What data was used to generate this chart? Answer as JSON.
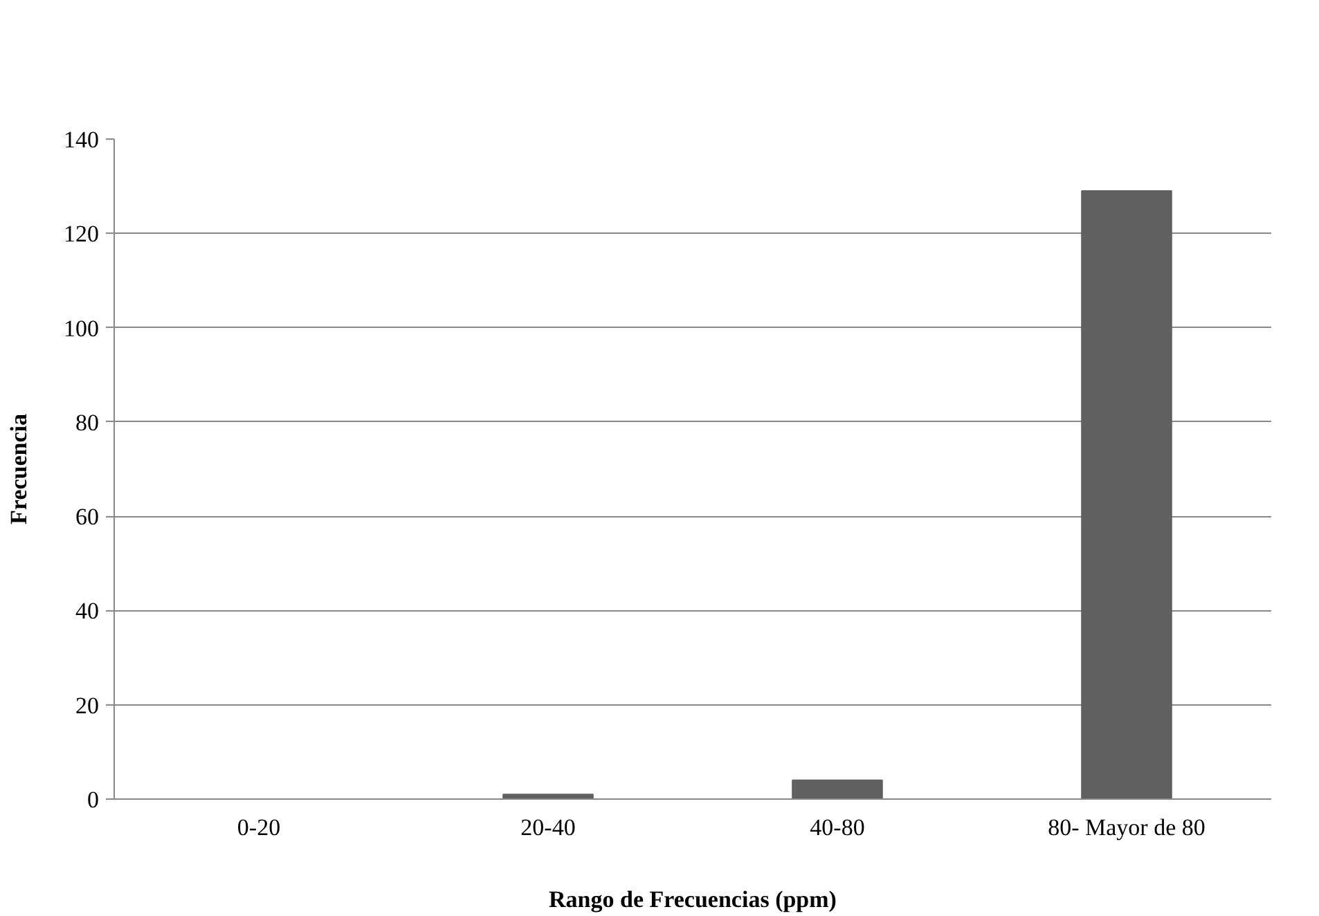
{
  "chart_data": {
    "type": "bar",
    "xlabel": "Rango de Frecuencias (ppm)",
    "ylabel": "Frecuencia",
    "categories": [
      "0-20",
      "20-40",
      "40-80",
      "80- Mayor de 80"
    ],
    "values": [
      0,
      1,
      4,
      129
    ],
    "color": "#606060",
    "ylim": [
      0,
      140
    ],
    "yticks": [
      0,
      20,
      40,
      60,
      80,
      100,
      120,
      140
    ],
    "grid": "y"
  }
}
